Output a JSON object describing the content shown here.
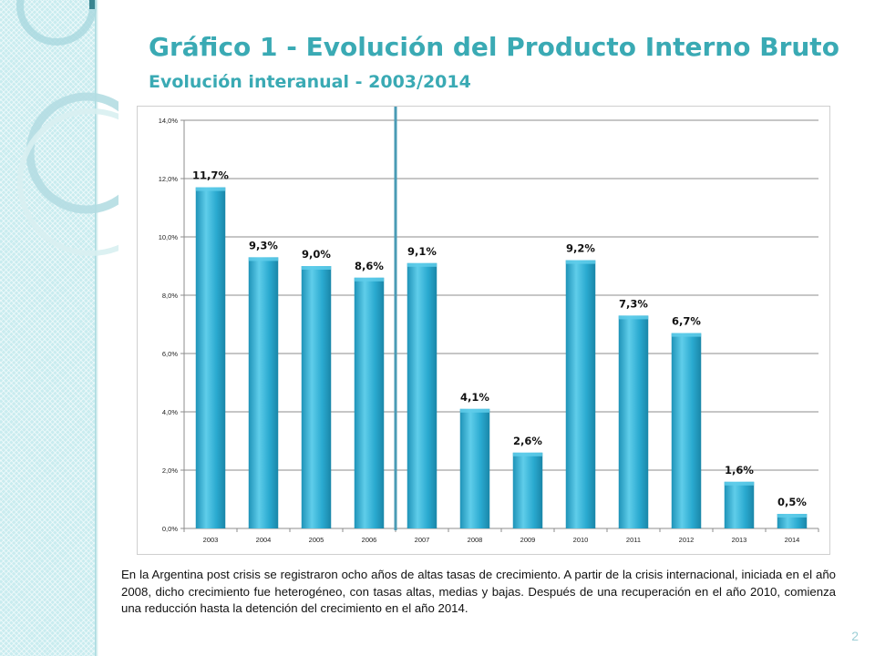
{
  "slide": {
    "title": "Gráfico 1 - Evolución del Producto Interno Bruto",
    "subtitle": "Evolución interanual - 2003/2014",
    "paragraph": "En la Argentina post crisis se registraron ocho años de altas tasas de crecimiento. A partir de la crisis internacional, iniciada en el año 2008, dicho crecimiento fue heterogéneo, con tasas altas, medias y bajas. Después de una recuperación en el año 2010, comienza una reducción hasta la detención del crecimiento en el año 2014.",
    "page_number": "2"
  },
  "colors": {
    "accent": "#3aaab4",
    "bar": "#29a9cf",
    "bar_light": "#5fcdea",
    "bar_dark": "#1a86a8",
    "divider_line": "#4a9bb5",
    "left_band": "#c9ecef"
  },
  "chart_data": {
    "type": "bar",
    "title": "",
    "xlabel": "",
    "ylabel": "",
    "categories": [
      "2003",
      "2004",
      "2005",
      "2006",
      "2007",
      "2008",
      "2009",
      "2010",
      "2011",
      "2012",
      "2013",
      "2014"
    ],
    "values": [
      11.7,
      9.3,
      9.0,
      8.6,
      9.1,
      4.1,
      2.6,
      9.2,
      7.3,
      6.7,
      1.6,
      0.5
    ],
    "data_labels": [
      "11,7%",
      "9,3%",
      "9,0%",
      "8,6%",
      "9,1%",
      "4,1%",
      "2,6%",
      "9,2%",
      "7,3%",
      "6,7%",
      "1,6%",
      "0,5%"
    ],
    "ylim": [
      0,
      14
    ],
    "yticks": [
      0,
      2,
      4,
      6,
      8,
      10,
      12,
      14
    ],
    "ytick_labels": [
      "0,0%",
      "2,0%",
      "4,0%",
      "6,0%",
      "8,0%",
      "10,0%",
      "12,0%",
      "14,0%"
    ],
    "grid": true,
    "legend": "none",
    "vertical_marker_between": [
      "2006",
      "2007"
    ]
  }
}
